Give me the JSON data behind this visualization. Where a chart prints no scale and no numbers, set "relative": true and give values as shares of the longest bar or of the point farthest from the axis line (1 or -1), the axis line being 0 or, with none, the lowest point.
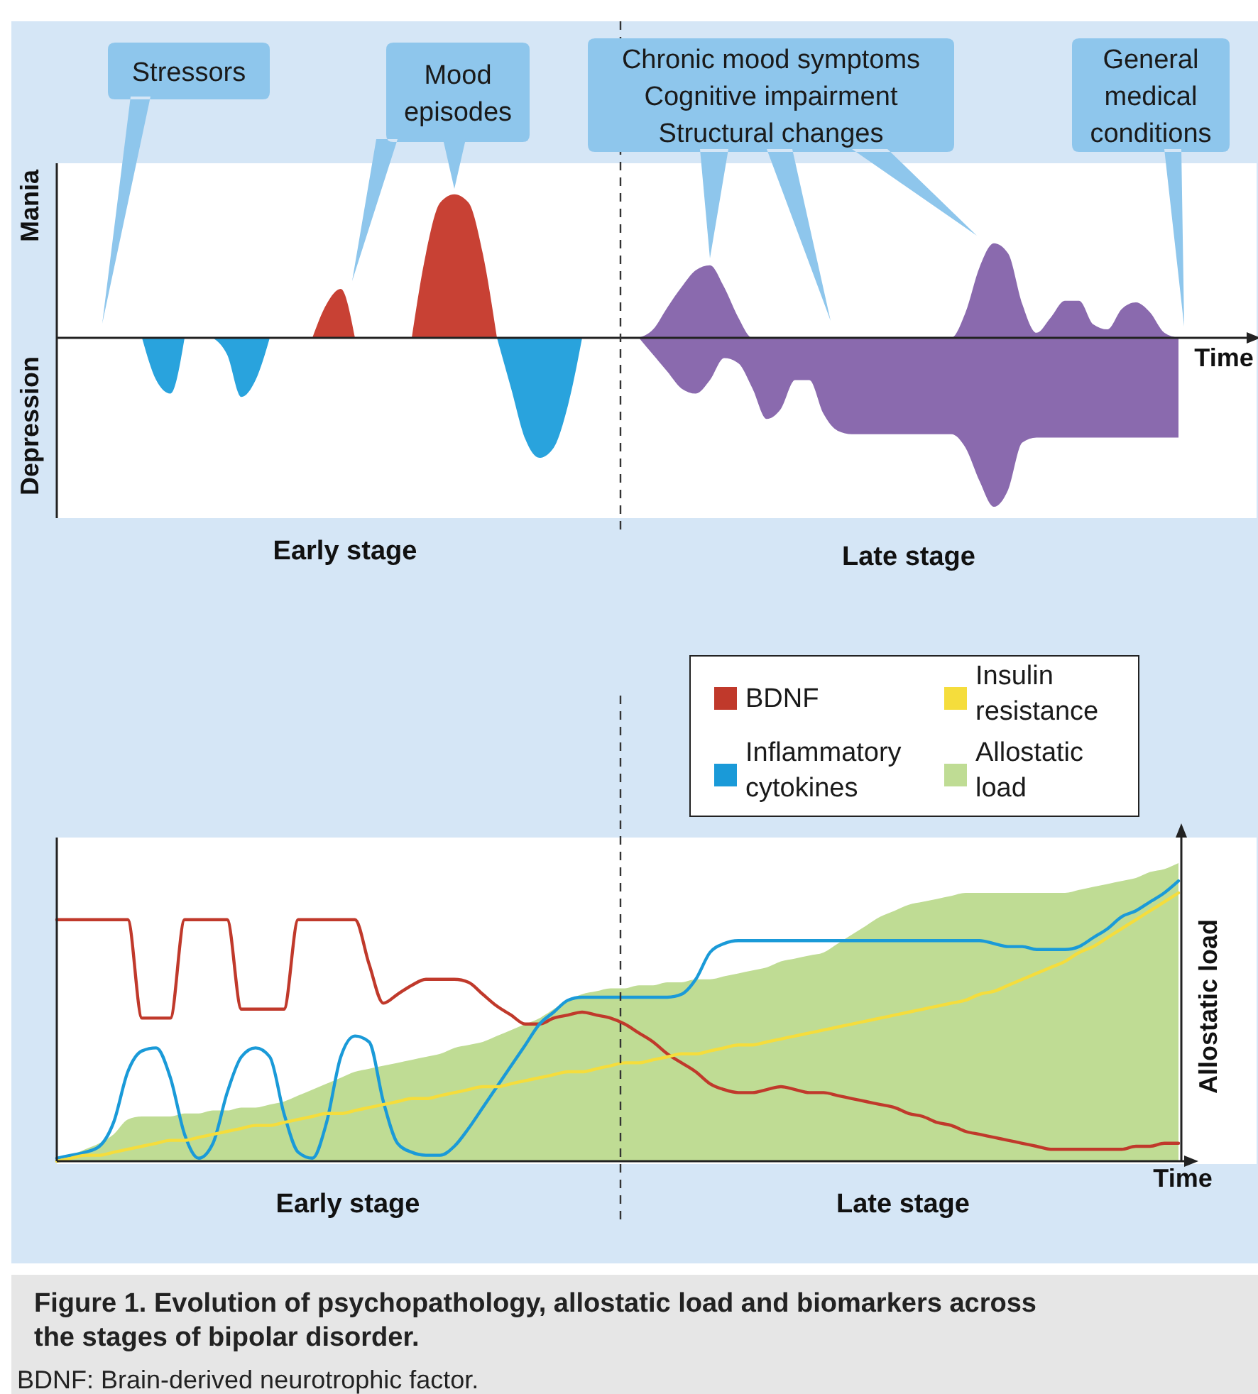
{
  "chart_data": [
    {
      "type": "area",
      "relative": true,
      "xlabel": "Time",
      "legend": false,
      "categories": [
        null,
        null,
        null,
        null,
        null,
        null,
        null,
        null,
        null,
        null,
        null,
        null,
        null,
        null,
        null,
        null,
        null,
        null,
        null,
        null,
        null,
        null,
        null,
        null,
        null,
        null,
        null,
        null,
        null,
        null,
        null,
        null,
        null,
        null,
        null,
        null,
        null,
        null,
        null,
        null,
        null,
        null,
        null,
        null,
        null,
        null,
        null,
        null,
        null,
        null,
        null,
        null,
        null,
        null,
        null,
        null,
        null,
        null,
        null,
        null,
        null,
        null,
        null,
        null,
        null,
        null,
        null,
        null,
        null,
        null,
        null,
        null,
        null,
        null,
        null,
        null,
        null,
        null,
        null,
        null,
        null,
        null,
        null,
        null,
        null
      ],
      "series": [
        {
          "color": "#29a3dd",
          "values": [
            null,
            null,
            null,
            null,
            null,
            null,
            0,
            -0.25,
            -0.33,
            0,
            null,
            0,
            -0.1,
            -0.35,
            -0.25,
            0,
            null,
            null,
            null,
            null,
            null,
            null,
            null,
            null,
            null,
            null,
            null,
            null,
            null,
            null,
            null,
            0,
            -0.3,
            -0.6,
            -0.71,
            -0.65,
            -0.4,
            0,
            null,
            null,
            null,
            null,
            null,
            null,
            null,
            null,
            null,
            null,
            null,
            null,
            null,
            null,
            null,
            null,
            null,
            null,
            null,
            null,
            null,
            null,
            null,
            null,
            null,
            null,
            null,
            null,
            null,
            null,
            null,
            null,
            null,
            null,
            null,
            null,
            null,
            null,
            null,
            null,
            null,
            null,
            null,
            null,
            null,
            null,
            null
          ]
        },
        {
          "color": "#c84134",
          "values": [
            null,
            null,
            null,
            null,
            null,
            null,
            null,
            null,
            null,
            null,
            null,
            null,
            null,
            null,
            null,
            null,
            null,
            null,
            0,
            0.2,
            0.29,
            0,
            null,
            null,
            null,
            0,
            0.5,
            0.8,
            0.85,
            0.8,
            0.5,
            0,
            null,
            null,
            null,
            null,
            null,
            null,
            null,
            null,
            null,
            null,
            null,
            null,
            null,
            null,
            null,
            null,
            null,
            null,
            null,
            null,
            null,
            null,
            null,
            null,
            null,
            null,
            null,
            null,
            null,
            null,
            null,
            null,
            null,
            null,
            null,
            null,
            null,
            null,
            null,
            null,
            null,
            null,
            null,
            null,
            null,
            null,
            null,
            null,
            null,
            null,
            null,
            null,
            null
          ]
        },
        {
          "color": "#8a6aae",
          "values": [
            null,
            null,
            null,
            null,
            null,
            null,
            null,
            null,
            null,
            null,
            null,
            null,
            null,
            null,
            null,
            null,
            null,
            null,
            null,
            null,
            null,
            null,
            null,
            null,
            null,
            null,
            null,
            null,
            null,
            null,
            null,
            null,
            null,
            null,
            null,
            null,
            null,
            null,
            null,
            null,
            null,
            0,
            0.05,
            0.18,
            0.3,
            0.4,
            0.43,
            0.3,
            0.12,
            0,
            0,
            0,
            0,
            0,
            0,
            0,
            0,
            0,
            0,
            0,
            0,
            0,
            0,
            0,
            0.15,
            0.42,
            0.56,
            0.5,
            0.2,
            0.03,
            0.12,
            0.22,
            0.22,
            0.08,
            0.05,
            0.17,
            0.21,
            0.15,
            0.03,
            0,
            null,
            null,
            null,
            null,
            null
          ]
        },
        {
          "color": "#8a6aae",
          "values": [
            null,
            null,
            null,
            null,
            null,
            null,
            null,
            null,
            null,
            null,
            null,
            null,
            null,
            null,
            null,
            null,
            null,
            null,
            null,
            null,
            null,
            null,
            null,
            null,
            null,
            null,
            null,
            null,
            null,
            null,
            null,
            null,
            null,
            null,
            null,
            null,
            null,
            null,
            null,
            null,
            null,
            0,
            -0.1,
            -0.2,
            -0.3,
            -0.33,
            -0.25,
            -0.12,
            -0.15,
            -0.3,
            -0.48,
            -0.42,
            -0.25,
            -0.25,
            -0.45,
            -0.55,
            -0.57,
            -0.57,
            -0.57,
            -0.57,
            -0.57,
            -0.57,
            -0.57,
            -0.57,
            -0.65,
            -0.85,
            -1,
            -0.9,
            -0.62,
            -0.59,
            -0.59,
            -0.59,
            -0.59,
            -0.59,
            -0.59,
            -0.59,
            -0.59,
            -0.59,
            -0.59,
            -0.59,
            null,
            null,
            null,
            null,
            null
          ]
        }
      ],
      "annotations": [
        "Stressors",
        "Mood\nepisodes",
        "Chronic mood symptoms\nCognitive impairment\nStructural changes",
        "General\nmedical\nconditions",
        "Mania",
        "Depression",
        "Early stage",
        "Late stage"
      ]
    },
    {
      "type": "line",
      "relative": true,
      "xlabel": "Time",
      "y2label": "Allostatic load",
      "legend": "top right",
      "title": "Figure 1. Evolution of psychopathology, allostatic load and biomarkers across the stages of bipolar disorder.",
      "categories": [
        null,
        null,
        null,
        null,
        null,
        null,
        null,
        null,
        null,
        null,
        null,
        null,
        null,
        null,
        null,
        null,
        null,
        null,
        null,
        null,
        null,
        null,
        null,
        null,
        null,
        null,
        null,
        null,
        null,
        null,
        null,
        null,
        null,
        null,
        null,
        null,
        null,
        null,
        null,
        null,
        null,
        null,
        null,
        null,
        null,
        null,
        null,
        null,
        null,
        null,
        null,
        null,
        null,
        null,
        null,
        null,
        null,
        null,
        null,
        null,
        null,
        null,
        null,
        null,
        null,
        null,
        null,
        null,
        null,
        null,
        null,
        null,
        null,
        null,
        null,
        null,
        null,
        null,
        null,
        null
      ],
      "series": [
        {
          "name": "Allostatic load",
          "type": "area",
          "color": "#bfdc94",
          "values": [
            0,
            0.02,
            0.04,
            0.06,
            0.09,
            0.14,
            0.15,
            0.15,
            0.15,
            0.16,
            0.16,
            0.17,
            0.17,
            0.18,
            0.18,
            0.19,
            0.2,
            0.22,
            0.24,
            0.26,
            0.28,
            0.3,
            0.31,
            0.32,
            0.33,
            0.34,
            0.35,
            0.36,
            0.38,
            0.39,
            0.4,
            0.42,
            0.44,
            0.46,
            0.48,
            0.51,
            0.54,
            0.56,
            0.57,
            0.58,
            0.58,
            0.59,
            0.59,
            0.6,
            0.6,
            0.61,
            0.61,
            0.62,
            0.63,
            0.64,
            0.65,
            0.67,
            0.68,
            0.69,
            0.7,
            0.73,
            0.76,
            0.79,
            0.82,
            0.84,
            0.86,
            0.87,
            0.88,
            0.89,
            0.9,
            0.9,
            0.9,
            0.9,
            0.9,
            0.9,
            0.9,
            0.9,
            0.91,
            0.92,
            0.93,
            0.94,
            0.95,
            0.97,
            0.98,
            1
          ]
        },
        {
          "name": "BDNF",
          "type": "line",
          "color": "#c0392b",
          "values": [
            0.81,
            0.81,
            0.81,
            0.81,
            0.81,
            0.81,
            0.48,
            0.48,
            0.48,
            0.81,
            0.81,
            0.81,
            0.81,
            0.51,
            0.51,
            0.51,
            0.51,
            0.81,
            0.81,
            0.81,
            0.81,
            0.81,
            0.66,
            0.53,
            0.56,
            0.59,
            0.61,
            0.61,
            0.61,
            0.6,
            0.56,
            0.52,
            0.49,
            0.46,
            0.46,
            0.48,
            0.49,
            0.5,
            0.49,
            0.48,
            0.46,
            0.43,
            0.4,
            0.36,
            0.33,
            0.3,
            0.26,
            0.24,
            0.23,
            0.23,
            0.24,
            0.25,
            0.24,
            0.23,
            0.23,
            0.22,
            0.21,
            0.2,
            0.19,
            0.18,
            0.16,
            0.15,
            0.13,
            0.12,
            0.1,
            0.09,
            0.08,
            0.07,
            0.06,
            0.05,
            0.04,
            0.04,
            0.04,
            0.04,
            0.04,
            0.04,
            0.05,
            0.05,
            0.06,
            0.06
          ]
        },
        {
          "name": "Inflammatory cytokines",
          "type": "line",
          "color": "#1a9ad8",
          "values": [
            0.01,
            0.02,
            0.03,
            0.05,
            0.13,
            0.3,
            0.37,
            0.38,
            0.28,
            0.09,
            0.01,
            0.06,
            0.23,
            0.35,
            0.38,
            0.35,
            0.16,
            0.03,
            0.01,
            0.13,
            0.35,
            0.42,
            0.4,
            0.2,
            0.06,
            0.03,
            0.02,
            0.02,
            0.05,
            0.11,
            0.18,
            0.25,
            0.32,
            0.39,
            0.46,
            0.5,
            0.54,
            0.55,
            0.55,
            0.55,
            0.55,
            0.55,
            0.55,
            0.55,
            0.56,
            0.61,
            0.7,
            0.73,
            0.74,
            0.74,
            0.74,
            0.74,
            0.74,
            0.74,
            0.74,
            0.74,
            0.74,
            0.74,
            0.74,
            0.74,
            0.74,
            0.74,
            0.74,
            0.74,
            0.74,
            0.74,
            0.73,
            0.72,
            0.72,
            0.71,
            0.71,
            0.71,
            0.72,
            0.75,
            0.78,
            0.82,
            0.84,
            0.87,
            0.9,
            0.94
          ]
        },
        {
          "name": "Insulin resistance",
          "type": "line",
          "color": "#f5dd3c",
          "values": [
            0,
            0.01,
            0.02,
            0.02,
            0.03,
            0.04,
            0.05,
            0.06,
            0.07,
            0.07,
            0.08,
            0.09,
            0.1,
            0.11,
            0.12,
            0.12,
            0.13,
            0.14,
            0.15,
            0.16,
            0.16,
            0.17,
            0.18,
            0.19,
            0.2,
            0.21,
            0.21,
            0.22,
            0.23,
            0.24,
            0.25,
            0.25,
            0.26,
            0.27,
            0.28,
            0.29,
            0.3,
            0.3,
            0.31,
            0.32,
            0.33,
            0.33,
            0.34,
            0.35,
            0.36,
            0.36,
            0.37,
            0.38,
            0.39,
            0.39,
            0.4,
            0.41,
            0.42,
            0.43,
            0.44,
            0.45,
            0.46,
            0.47,
            0.48,
            0.49,
            0.5,
            0.51,
            0.52,
            0.53,
            0.54,
            0.56,
            0.57,
            0.59,
            0.61,
            0.63,
            0.65,
            0.67,
            0.7,
            0.72,
            0.75,
            0.78,
            0.81,
            0.84,
            0.87,
            0.9
          ]
        }
      ],
      "annotations": [
        "Early stage",
        "Late stage",
        "BDNF: Brain-derived neurotrophic factor."
      ]
    }
  ]
}
